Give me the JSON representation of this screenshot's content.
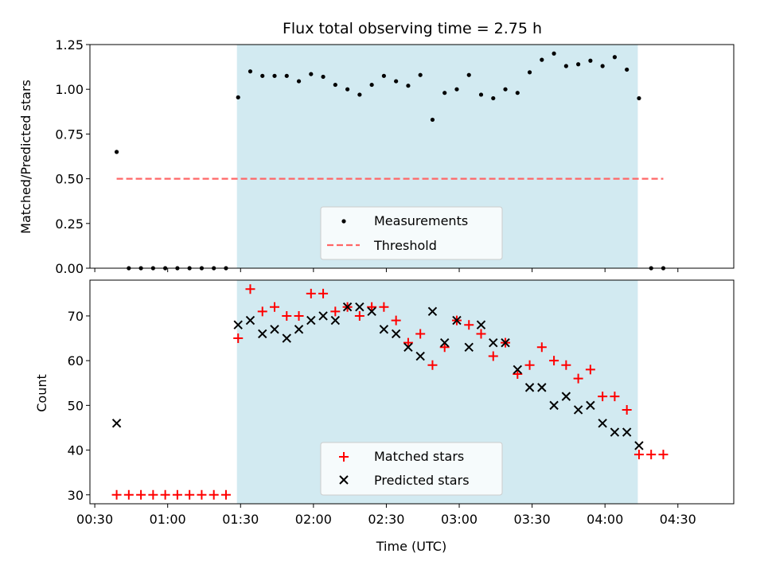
{
  "chart_data": {
    "type": "scatter",
    "title": "Flux total observing time = 2.75 h",
    "xlabel": "Time (UTC)",
    "x_unit": "minutes after 00:00 UTC",
    "xlim": [
      28,
      293
    ],
    "x_ticks": [
      30,
      60,
      90,
      120,
      150,
      180,
      210,
      240,
      270
    ],
    "x_tick_labels": [
      "00:30",
      "01:00",
      "01:30",
      "02:00",
      "02:30",
      "03:00",
      "03:30",
      "04:00",
      "04:30"
    ],
    "shaded_region": {
      "start": 88.5,
      "end": 253.5,
      "color": "#add8e6"
    },
    "x": [
      39,
      44,
      49,
      54,
      59,
      64,
      69,
      74,
      79,
      84,
      89,
      94,
      99,
      104,
      109,
      114,
      119,
      124,
      129,
      134,
      139,
      144,
      149,
      154,
      159,
      164,
      169,
      174,
      179,
      184,
      189,
      194,
      199,
      204,
      209,
      214,
      219,
      224,
      229,
      234,
      239,
      244,
      249,
      254,
      259,
      264
    ],
    "panels": [
      {
        "ylabel": "Matched/Predicted stars",
        "ylim": [
          0,
          1.25
        ],
        "y_ticks": [
          0,
          0.25,
          0.5,
          0.75,
          1.0,
          1.25
        ],
        "y_tick_labels": [
          "0.00",
          "0.25",
          "0.50",
          "0.75",
          "1.00",
          "1.25"
        ],
        "series": [
          {
            "name": "Measurements",
            "marker": "dot",
            "color": "#000000",
            "values": [
              0.65,
              0,
              0,
              0,
              0,
              0,
              0,
              0,
              0,
              0,
              0.955,
              1.1,
              1.075,
              1.075,
              1.075,
              1.045,
              1.085,
              1.07,
              1.025,
              1.0,
              0.97,
              1.025,
              1.075,
              1.045,
              1.02,
              1.08,
              0.83,
              0.98,
              1.0,
              1.08,
              0.97,
              0.95,
              1.0,
              0.98,
              1.095,
              1.165,
              1.2,
              1.13,
              1.14,
              1.16,
              1.13,
              1.18,
              1.11,
              0.95,
              0,
              0
            ]
          }
        ],
        "threshold": {
          "name": "Threshold",
          "value": 0.5,
          "x_range": [
            39,
            264
          ],
          "color": "#ff6666"
        },
        "legend": "lower-center"
      },
      {
        "ylabel": "Count",
        "ylim": [
          28,
          78
        ],
        "y_ticks": [
          30,
          40,
          50,
          60,
          70
        ],
        "y_tick_labels": [
          "30",
          "40",
          "50",
          "60",
          "70"
        ],
        "series": [
          {
            "name": "Matched stars",
            "marker": "plus",
            "color": "#ff0000",
            "values": [
              30,
              30,
              30,
              30,
              30,
              30,
              30,
              30,
              30,
              30,
              65,
              76,
              71,
              72,
              70,
              70,
              75,
              75,
              71,
              72,
              70,
              72,
              72,
              69,
              64,
              66,
              59,
              63,
              69,
              68,
              66,
              61,
              64,
              57,
              59,
              63,
              60,
              59,
              56,
              58,
              52,
              52,
              49,
              39,
              39,
              39
            ]
          },
          {
            "name": "Predicted stars",
            "marker": "x",
            "color": "#000000",
            "x_indices": [
              0,
              10,
              11,
              12,
              13,
              14,
              15,
              16,
              17,
              18,
              19,
              20,
              21,
              22,
              23,
              24,
              25,
              26,
              27,
              28,
              29,
              30,
              31,
              32,
              33,
              34,
              35,
              36,
              37,
              38,
              39,
              40,
              41,
              42,
              43
            ],
            "values": [
              46,
              68,
              69,
              66,
              67,
              65,
              67,
              69,
              70,
              69,
              72,
              72,
              71,
              67,
              66,
              63,
              61,
              71,
              64,
              69,
              63,
              68,
              64,
              64,
              58,
              54,
              54,
              50,
              52,
              49,
              50,
              46,
              44,
              44,
              41
            ]
          }
        ],
        "legend": "lower-center"
      }
    ]
  }
}
